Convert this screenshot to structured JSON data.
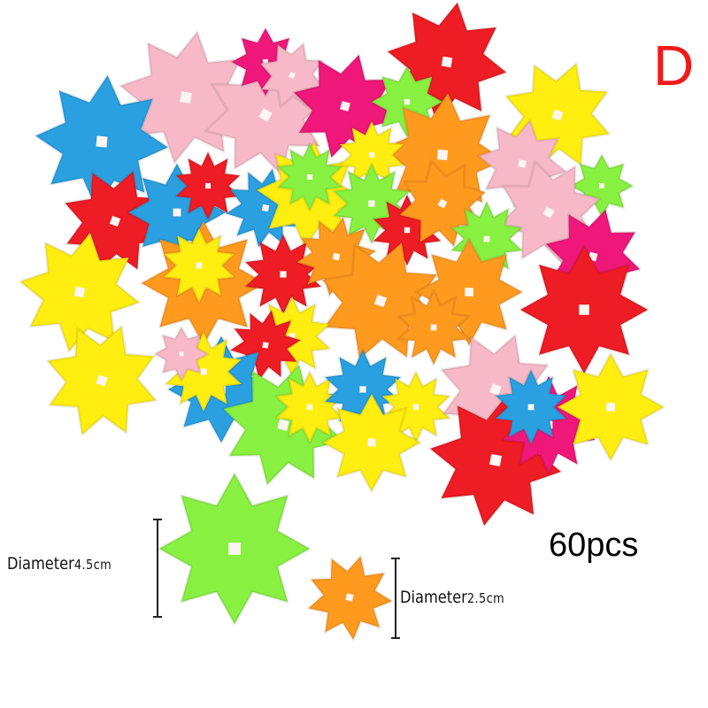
{
  "product": {
    "variant_label": "D",
    "quantity_label": "60pcs",
    "large_size": {
      "label": "Diameter",
      "value": "4.5cm"
    },
    "small_size": {
      "label": "Diameter",
      "value": "2.5cm"
    }
  },
  "colors": {
    "red": "#ee1c24",
    "yellow": "#ffee10",
    "blue": "#2aa0e0",
    "pink": "#f7b9c8",
    "green": "#88f040",
    "orange": "#ff9a1e",
    "magenta": "#f0177a",
    "label_red": "#f01a1a"
  }
}
